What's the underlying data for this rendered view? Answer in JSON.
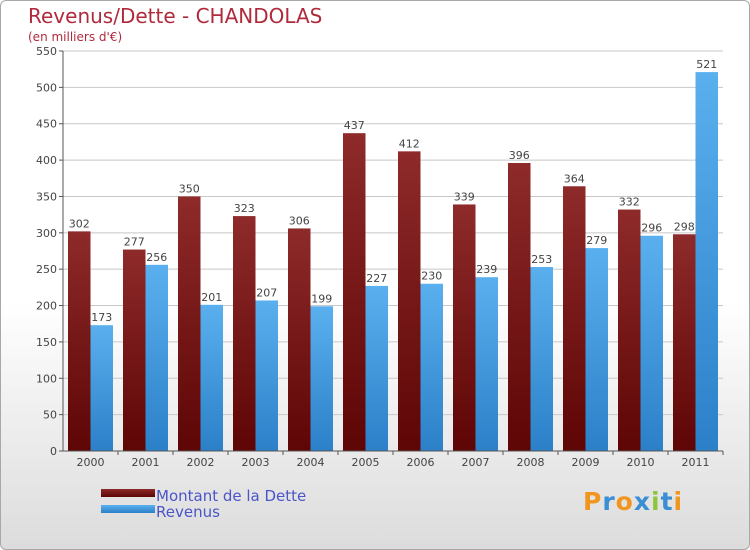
{
  "title": "Revenus/Dette - CHANDOLAS",
  "subtitle": "(en milliers d'€)",
  "logo": {
    "letters": [
      "P",
      "r",
      "o",
      "x",
      "i",
      "t",
      "i"
    ],
    "colors": [
      "#f0961e",
      "#3a8fd4",
      "#f0961e",
      "#3a8fd4",
      "#8cc63f",
      "#3a8fd4",
      "#f0961e"
    ]
  },
  "colors": {
    "dette": "#7a1515",
    "revenus": "#4aa3e4",
    "title": "#b02a3c",
    "legend_text": "#4a55c8"
  },
  "chart_data": {
    "type": "bar",
    "categories": [
      "2000",
      "2001",
      "2002",
      "2003",
      "2004",
      "2005",
      "2006",
      "2007",
      "2008",
      "2009",
      "2010",
      "2011"
    ],
    "series": [
      {
        "name": "Montant de la Dette",
        "values": [
          302,
          277,
          350,
          323,
          306,
          437,
          412,
          339,
          396,
          364,
          332,
          298
        ]
      },
      {
        "name": "Revenus",
        "values": [
          173,
          256,
          201,
          207,
          199,
          227,
          230,
          239,
          253,
          279,
          296,
          521
        ]
      }
    ],
    "ylim": [
      0,
      550
    ],
    "yticks": [
      0,
      50,
      100,
      150,
      200,
      250,
      300,
      350,
      400,
      450,
      500,
      550
    ],
    "grid": true,
    "legend_position": "bottom-left"
  }
}
